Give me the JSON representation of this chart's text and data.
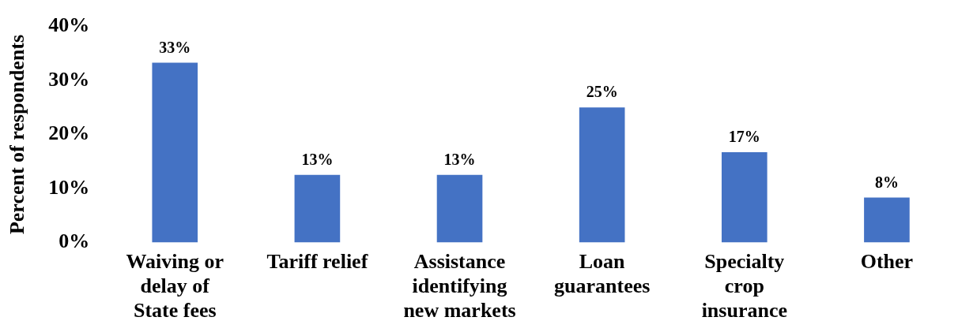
{
  "chart_data": {
    "type": "bar",
    "ylabel": "Percent of respondents",
    "categories": [
      "Waiving or delay of State fees",
      "Tariff relief",
      "Assistance identifying new markets",
      "Loan guarantees",
      "Specialty crop insurance",
      "Other"
    ],
    "values": [
      33.3,
      12.5,
      12.5,
      25,
      16.7,
      8.3
    ],
    "value_labels": [
      "33%",
      "13%",
      "13%",
      "25%",
      "17%",
      "8%"
    ],
    "color": "#4472c4",
    "ylim": [
      0,
      40
    ],
    "yticks": [
      {
        "value": 0,
        "label": "0%"
      },
      {
        "value": 10,
        "label": "10%"
      },
      {
        "value": 20,
        "label": "20%"
      },
      {
        "value": 30,
        "label": "30%"
      },
      {
        "value": 40,
        "label": "40%"
      }
    ],
    "grid": false,
    "legend": false
  }
}
